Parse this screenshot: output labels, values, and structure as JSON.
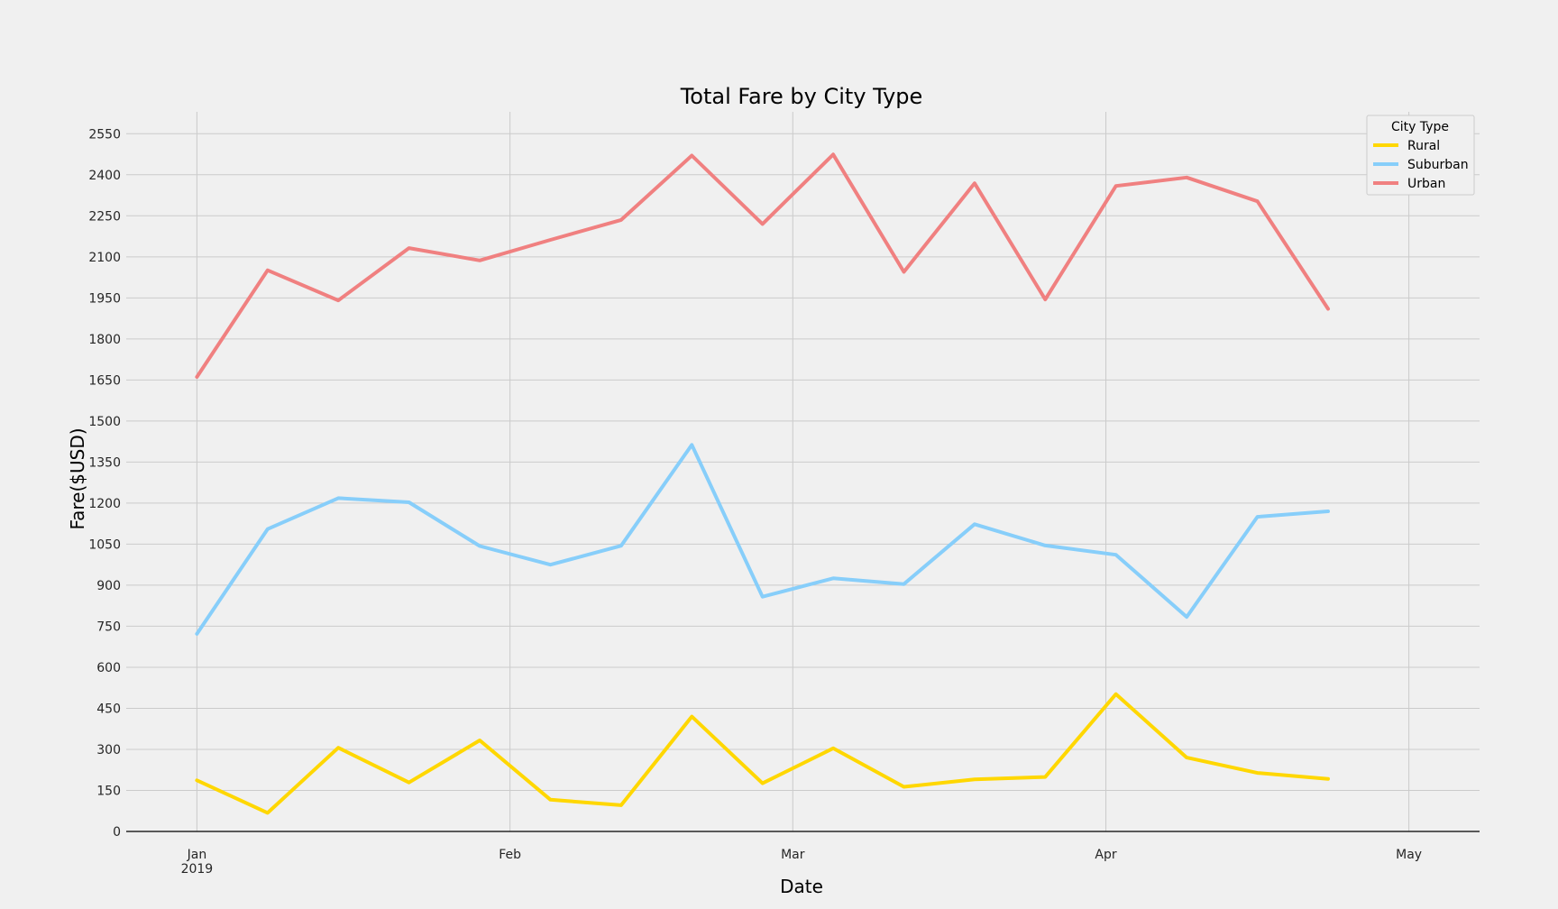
{
  "chart_data": {
    "type": "line",
    "title": "Total Fare by City Type",
    "xlabel": "Date",
    "ylabel": "Fare($USD)",
    "x_ticks": [
      {
        "date": "2019-01-01",
        "label": "Jan",
        "sublabel": "2019"
      },
      {
        "date": "2019-02-01",
        "label": "Feb",
        "sublabel": ""
      },
      {
        "date": "2019-03-01",
        "label": "Mar",
        "sublabel": ""
      },
      {
        "date": "2019-04-01",
        "label": "Apr",
        "sublabel": ""
      },
      {
        "date": "2019-05-01",
        "label": "May",
        "sublabel": ""
      }
    ],
    "xlim": [
      "2018-12-25",
      "2019-05-08"
    ],
    "ylim": [
      0,
      2600
    ],
    "y_ticks": [
      0,
      150,
      300,
      450,
      600,
      750,
      900,
      1050,
      1200,
      1350,
      1500,
      1650,
      1800,
      1950,
      2100,
      2250,
      2400,
      2550
    ],
    "grid": true,
    "x": [
      "2019-01-01",
      "2019-01-08",
      "2019-01-15",
      "2019-01-22",
      "2019-01-29",
      "2019-02-05",
      "2019-02-12",
      "2019-02-19",
      "2019-02-26",
      "2019-03-05",
      "2019-03-12",
      "2019-03-19",
      "2019-03-26",
      "2019-04-02",
      "2019-04-09",
      "2019-04-16",
      "2019-04-23"
    ],
    "legend": {
      "title": "City Type",
      "position": "top-right"
    },
    "series": [
      {
        "name": "Rural",
        "color": "#ffd700",
        "values": [
          187,
          68,
          306,
          179,
          333,
          116,
          96,
          420,
          176,
          304,
          163,
          190,
          199,
          502,
          270,
          214,
          192
        ]
      },
      {
        "name": "Suburban",
        "color": "#87cefa",
        "values": [
          722,
          1105,
          1218,
          1203,
          1043,
          975,
          1044,
          1413,
          858,
          925,
          904,
          1123,
          1045,
          1011,
          784,
          1150,
          1170
        ]
      },
      {
        "name": "Urban",
        "color": "#f08080",
        "values": [
          1661,
          2051,
          1941,
          2132,
          2087,
          2162,
          2235,
          2470,
          2220,
          2474,
          2045,
          2369,
          1944,
          2359,
          2390,
          2303,
          1910
        ]
      }
    ]
  }
}
